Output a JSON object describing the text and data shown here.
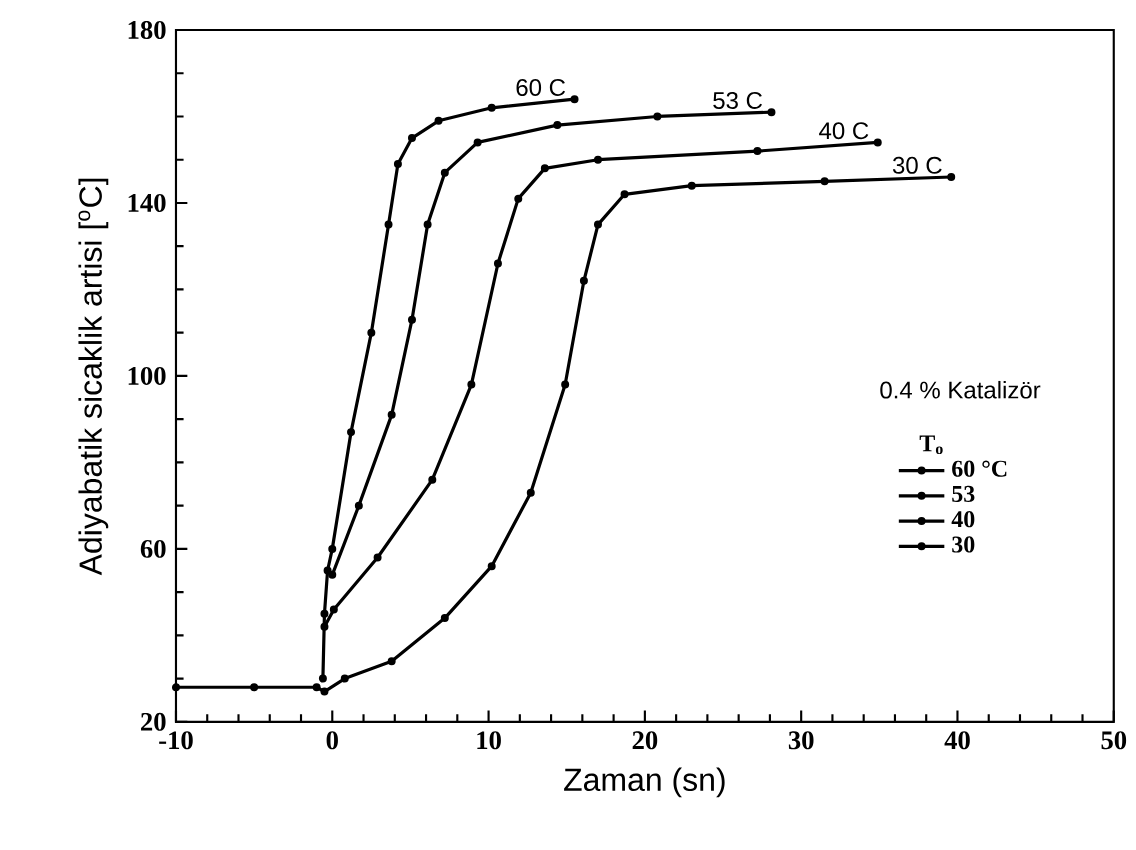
{
  "chart_data": {
    "type": "line",
    "xlabel": "Zaman (sn)",
    "ylabel": "Adiyabatik sicaklik artisi  [$^{o}$C]",
    "legend_title": "T$_{o}$",
    "legend": "right",
    "marker": "circle",
    "line_style": "solid",
    "grid": false,
    "xlim": [
      -10,
      50
    ],
    "ylim": [
      20,
      180
    ],
    "xticks": [
      -10,
      0,
      10,
      20,
      30,
      40,
      50
    ],
    "yticks": [
      20,
      60,
      100,
      140,
      180
    ],
    "series": [
      {
        "name": "60 °C",
        "color": "#000000",
        "x": [
          -0.6,
          -0.5,
          -0.3,
          0,
          1.2,
          2.5,
          3.6,
          4.2,
          5.1,
          6.8,
          10.2,
          15.5
        ],
        "values": [
          30,
          45,
          55,
          60,
          87,
          110,
          135,
          149,
          155,
          159,
          162,
          164
        ]
      },
      {
        "name": "53",
        "color": "#000000",
        "x": [
          0,
          1.7,
          3.8,
          5.1,
          6.1,
          7.2,
          9.3,
          14.4,
          20.8,
          28.1
        ],
        "values": [
          54,
          70,
          91,
          113,
          135,
          147,
          154,
          158,
          160,
          161
        ]
      },
      {
        "name": "40",
        "color": "#000000",
        "x": [
          -0.5,
          0.1,
          2.9,
          6.4,
          8.9,
          10.6,
          11.9,
          13.6,
          17,
          27.2,
          34.9
        ],
        "values": [
          42,
          46,
          58,
          76,
          98,
          126,
          141,
          148,
          150,
          152,
          154
        ]
      },
      {
        "name": "30",
        "color": "#000000",
        "x": [
          -10,
          -5,
          -1,
          -0.5,
          0.8,
          3.8,
          7.2,
          10.2,
          12.7,
          14.9,
          16.1,
          17,
          18.7,
          23,
          31.5,
          39.6
        ],
        "values": [
          28,
          28,
          28,
          27,
          30,
          34,
          44,
          56,
          73,
          98,
          122,
          135,
          142,
          144,
          145,
          146
        ]
      }
    ],
    "annotations": [
      {
        "text": "60 C",
        "x": 15.5,
        "y": 164
      },
      {
        "text": "53 C",
        "x": 28.1,
        "y": 161
      },
      {
        "text": "40 C",
        "x": 34.9,
        "y": 154
      },
      {
        "text": "30 C",
        "x": 39.6,
        "y": 146
      },
      "0.4 % Katalizör"
    ]
  }
}
